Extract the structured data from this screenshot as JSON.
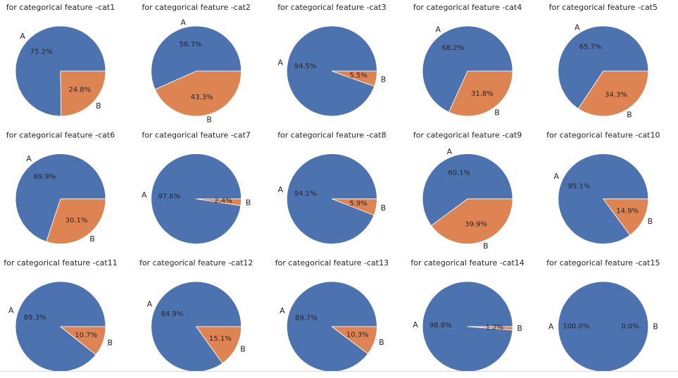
{
  "colors": {
    "A": "#4c72b0",
    "B": "#dd8452",
    "text": "#262626",
    "wedge_edge": "#ffffff"
  },
  "chart_data": [
    {
      "type": "pie",
      "title": "for categorical feature -cat1",
      "labels": [
        "A",
        "B"
      ],
      "values": [
        75.2,
        24.8
      ],
      "pct_labels": [
        "75.2%",
        "24.8%"
      ]
    },
    {
      "type": "pie",
      "title": "for categorical feature -cat2",
      "labels": [
        "A",
        "B"
      ],
      "values": [
        56.7,
        43.3
      ],
      "pct_labels": [
        "56.7%",
        "43.3%"
      ]
    },
    {
      "type": "pie",
      "title": "for categorical feature -cat3",
      "labels": [
        "A",
        "B"
      ],
      "values": [
        94.5,
        5.5
      ],
      "pct_labels": [
        "94.5%",
        "5.5%"
      ]
    },
    {
      "type": "pie",
      "title": "for categorical feature -cat4",
      "labels": [
        "A",
        "B"
      ],
      "values": [
        68.2,
        31.8
      ],
      "pct_labels": [
        "68.2%",
        "31.8%"
      ]
    },
    {
      "type": "pie",
      "title": "for categorical feature -cat5",
      "labels": [
        "A",
        "B"
      ],
      "values": [
        65.7,
        34.3
      ],
      "pct_labels": [
        "65.7%",
        "34.3%"
      ]
    },
    {
      "type": "pie",
      "title": "for categorical feature -cat6",
      "labels": [
        "A",
        "B"
      ],
      "values": [
        69.9,
        30.1
      ],
      "pct_labels": [
        "69.9%",
        "30.1%"
      ]
    },
    {
      "type": "pie",
      "title": "for categorical feature -cat7",
      "labels": [
        "A",
        "B"
      ],
      "values": [
        97.6,
        2.4
      ],
      "pct_labels": [
        "97.6%",
        "2.4%"
      ]
    },
    {
      "type": "pie",
      "title": "for categorical feature -cat8",
      "labels": [
        "A",
        "B"
      ],
      "values": [
        94.1,
        5.9
      ],
      "pct_labels": [
        "94.1%",
        "5.9%"
      ]
    },
    {
      "type": "pie",
      "title": "for categorical feature -cat9",
      "labels": [
        "A",
        "B"
      ],
      "values": [
        60.1,
        39.9
      ],
      "pct_labels": [
        "60.1%",
        "39.9%"
      ]
    },
    {
      "type": "pie",
      "title": "for categorical feature -cat10",
      "labels": [
        "A",
        "B"
      ],
      "values": [
        85.1,
        14.9
      ],
      "pct_labels": [
        "85.1%",
        "14.9%"
      ]
    },
    {
      "type": "pie",
      "title": "for categorical feature -cat11",
      "labels": [
        "A",
        "B"
      ],
      "values": [
        89.3,
        10.7
      ],
      "pct_labels": [
        "89.3%",
        "10.7%"
      ]
    },
    {
      "type": "pie",
      "title": "for categorical feature -cat12",
      "labels": [
        "A",
        "B"
      ],
      "values": [
        84.9,
        15.1
      ],
      "pct_labels": [
        "84.9%",
        "15.1%"
      ]
    },
    {
      "type": "pie",
      "title": "for categorical feature -cat13",
      "labels": [
        "A",
        "B"
      ],
      "values": [
        89.7,
        10.3
      ],
      "pct_labels": [
        "89.7%",
        "10.3%"
      ]
    },
    {
      "type": "pie",
      "title": "for categorical feature -cat14",
      "labels": [
        "A",
        "B"
      ],
      "values": [
        98.8,
        1.2
      ],
      "pct_labels": [
        "98.8%",
        "1.2%"
      ]
    },
    {
      "type": "pie",
      "title": "for categorical feature -cat15",
      "labels": [
        "A",
        "B"
      ],
      "values": [
        100.0,
        0.0
      ],
      "pct_labels": [
        "100.0%",
        "0.0%"
      ]
    }
  ]
}
